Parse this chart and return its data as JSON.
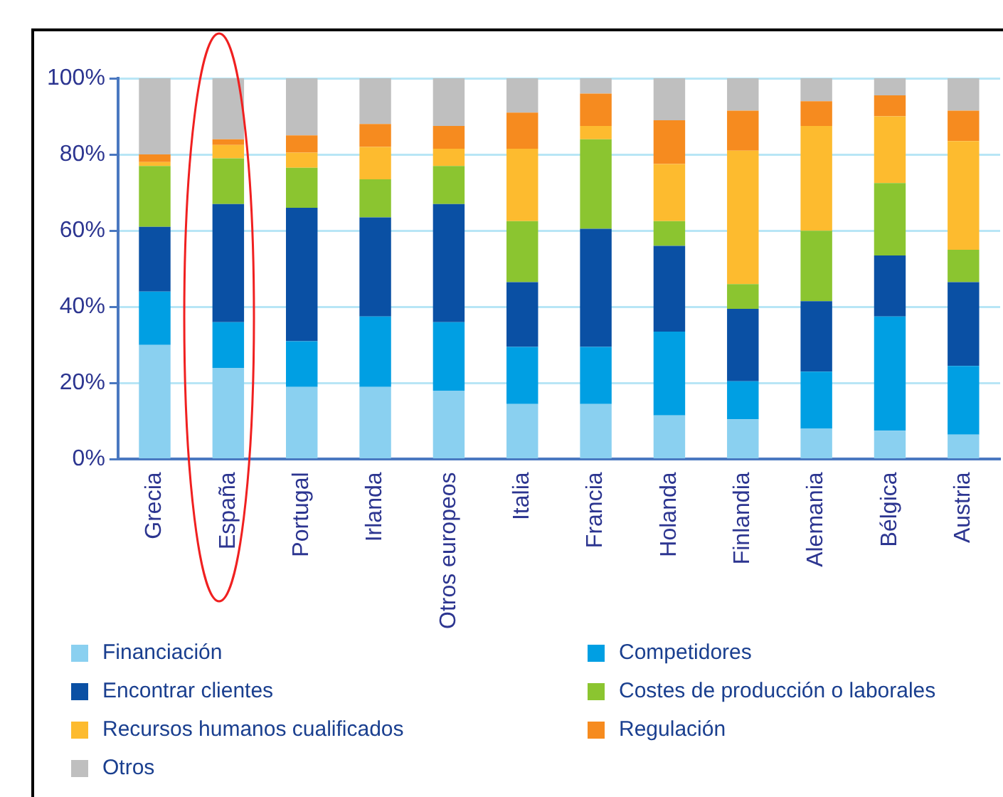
{
  "chart_data": {
    "type": "bar",
    "stacked": true,
    "grid": "y",
    "legend": "bottom",
    "categories": [
      "Grecia",
      "España",
      "Portugal",
      "Irlanda",
      "Otros europeos",
      "Italia",
      "Francia",
      "Holanda",
      "Finlandia",
      "Alemania",
      "Bélgica",
      "Austria"
    ],
    "ylim": [
      0,
      100
    ],
    "yticks": [
      {
        "value": 0,
        "label": "0%"
      },
      {
        "value": 20,
        "label": "20%"
      },
      {
        "value": 40,
        "label": "40%"
      },
      {
        "value": 60,
        "label": "60%"
      },
      {
        "value": 80,
        "label": "80%"
      },
      {
        "value": 100,
        "label": "100%"
      }
    ],
    "series": [
      {
        "name": "Financiación",
        "color": "#8ad0f0",
        "values": [
          30,
          24,
          19,
          19,
          18,
          14.5,
          14.5,
          11.5,
          10.5,
          8,
          7.5,
          6.5
        ]
      },
      {
        "name": "Competidores",
        "color": "#009fe3",
        "values": [
          14,
          12,
          12,
          18.5,
          18,
          15,
          15,
          22,
          10,
          15,
          30,
          18
        ]
      },
      {
        "name": "Encontrar clientes",
        "color": "#0a50a4",
        "values": [
          17,
          31,
          35,
          26,
          31,
          17,
          31,
          22.5,
          19,
          18.5,
          16,
          22
        ]
      },
      {
        "name": "Costes de producción o laborales",
        "color": "#8bc530",
        "values": [
          16,
          12,
          10.5,
          10,
          10,
          16,
          23.5,
          6.5,
          6.5,
          18.5,
          19,
          8.5
        ]
      },
      {
        "name": "Recursos humanos cualificados",
        "color": "#fdbb2f",
        "values": [
          1,
          3.5,
          4,
          8.5,
          4.5,
          19,
          3.5,
          15,
          35,
          27.5,
          17.5,
          28.5
        ]
      },
      {
        "name": "Regulación",
        "color": "#f68b1f",
        "values": [
          2,
          1.5,
          4.5,
          6,
          6,
          9.5,
          8.5,
          11.5,
          10.5,
          6.5,
          5.5,
          8
        ]
      },
      {
        "name": "Otros",
        "color": "#bfbfbf",
        "values": [
          20,
          16,
          15,
          12,
          12.5,
          9,
          4,
          11,
          8.5,
          6,
          4.5,
          8.5
        ]
      }
    ]
  }
}
